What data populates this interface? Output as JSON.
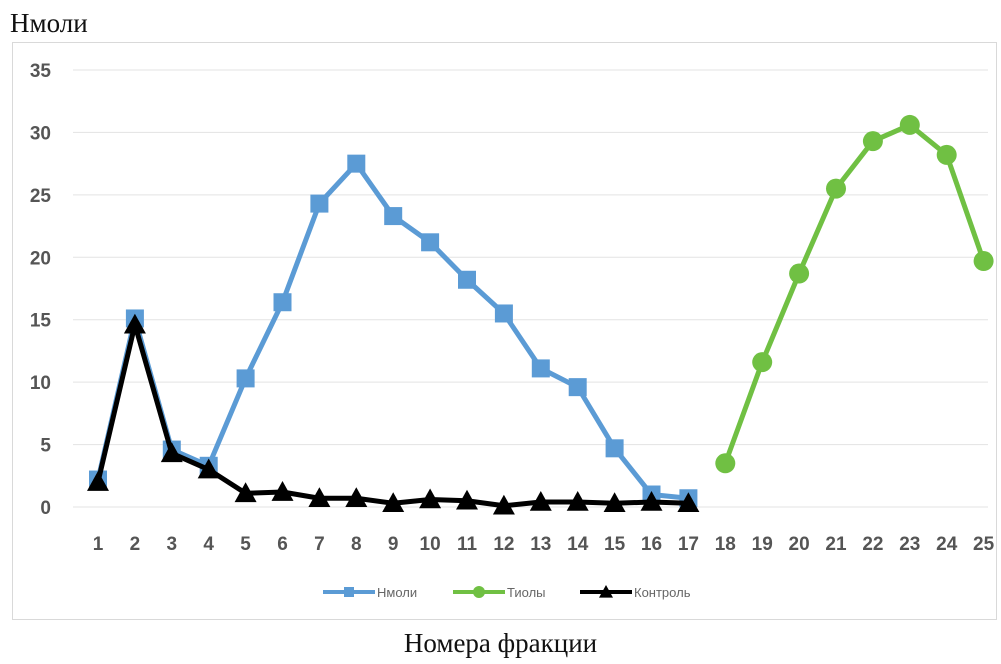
{
  "chart_data": {
    "type": "line",
    "ylabel": "Нмоли",
    "xlabel": "Номера фракции",
    "ylim": [
      0,
      35
    ],
    "yticks": [
      0,
      5,
      10,
      15,
      20,
      25,
      30,
      35
    ],
    "categories": [
      "1",
      "2",
      "3",
      "4",
      "5",
      "6",
      "7",
      "8",
      "9",
      "10",
      "11",
      "12",
      "13",
      "14",
      "15",
      "16",
      "17",
      "18",
      "19",
      "20",
      "21",
      "22",
      "23",
      "24",
      "25"
    ],
    "grid": true,
    "legend_position": "bottom",
    "series": [
      {
        "name": "Нмоли",
        "color": "#5b9bd5",
        "marker": "square",
        "x": [
          1,
          2,
          3,
          4,
          5,
          6,
          7,
          8,
          9,
          10,
          11,
          12,
          13,
          14,
          15,
          16,
          17
        ],
        "values": [
          2.2,
          15.1,
          4.6,
          3.3,
          10.3,
          16.4,
          24.3,
          27.5,
          23.3,
          21.2,
          18.2,
          15.5,
          11.1,
          9.6,
          4.7,
          1.0,
          0.7
        ]
      },
      {
        "name": "Тиолы",
        "color": "#70c043",
        "marker": "circle",
        "x": [
          18,
          19,
          20,
          21,
          22,
          23,
          24,
          25
        ],
        "values": [
          3.5,
          11.6,
          18.7,
          25.5,
          29.3,
          30.6,
          28.2,
          19.7
        ]
      },
      {
        "name": "Контроль",
        "color": "#000000",
        "marker": "triangle",
        "x": [
          1,
          2,
          3,
          4,
          5,
          6,
          7,
          8,
          9,
          10,
          11,
          12,
          13,
          14,
          15,
          16,
          17
        ],
        "values": [
          2.0,
          14.6,
          4.3,
          3.0,
          1.1,
          1.2,
          0.7,
          0.7,
          0.3,
          0.6,
          0.5,
          0.1,
          0.4,
          0.4,
          0.3,
          0.4,
          0.3
        ]
      }
    ]
  }
}
